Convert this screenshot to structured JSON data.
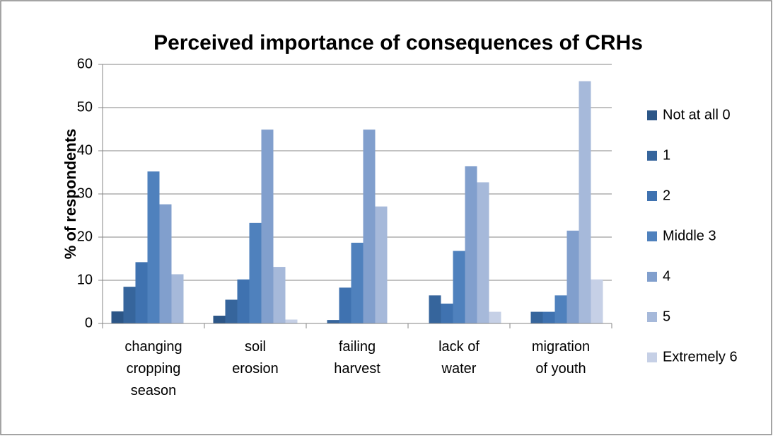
{
  "chart_data": {
    "type": "bar",
    "title": "Perceived importance of consequences of CRHs",
    "y_label": "% of respondents",
    "categories": [
      "changing cropping season",
      "soil erosion",
      "failing harvest",
      "lack of water",
      "migration of youth"
    ],
    "series": [
      {
        "name": "Not at all 0",
        "color": "#2c5687",
        "values": [
          2.8,
          1.8,
          0,
          0,
          0
        ]
      },
      {
        "name": "1",
        "color": "#36659c",
        "values": [
          8.5,
          5.5,
          0.8,
          6.5,
          2.7
        ]
      },
      {
        "name": "2",
        "color": "#3f72b0",
        "values": [
          14.2,
          10.2,
          8.3,
          4.6,
          2.7
        ]
      },
      {
        "name": "Middle 3",
        "color": "#4f81bd",
        "values": [
          35.2,
          23.3,
          18.7,
          16.8,
          6.5
        ]
      },
      {
        "name": "4",
        "color": "#819fcd",
        "values": [
          27.6,
          44.9,
          44.9,
          36.4,
          21.5
        ]
      },
      {
        "name": "5",
        "color": "#a6b9da",
        "values": [
          11.4,
          13.1,
          27.1,
          32.7,
          56.1
        ]
      },
      {
        "name": "Extremely 6",
        "color": "#c6d0e6",
        "values": [
          0,
          0.9,
          0,
          2.7,
          10.2
        ]
      }
    ],
    "ylim": [
      0,
      60
    ],
    "yticks": [
      0,
      10,
      20,
      30,
      40,
      50,
      60
    ],
    "grid": true,
    "legend": "right"
  }
}
